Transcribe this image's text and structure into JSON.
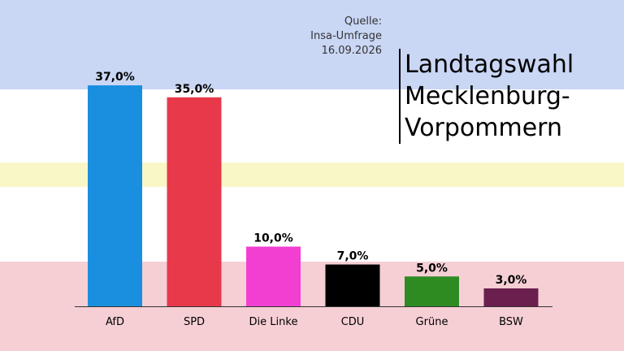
{
  "source": {
    "line1": "Quelle:",
    "line2": "Insa-Umfrage",
    "line3": "16.09.2026"
  },
  "chart_data": {
    "type": "bar",
    "title": "Landtagswahl\nMecklenburg-\nVorpommern",
    "categories": [
      "AfD",
      "SPD",
      "Die Linke",
      "CDU",
      "Grüne",
      "BSW"
    ],
    "values": [
      37.0,
      35.0,
      10.0,
      7.0,
      5.0,
      3.0
    ],
    "value_labels": [
      "37,0%",
      "35,0%",
      "10,0%",
      "7,0%",
      "5,0%",
      "3,0%"
    ],
    "colors": [
      "#1a8fe0",
      "#e8394a",
      "#f23fd2",
      "#000000",
      "#2e8b22",
      "#6a1f4e"
    ],
    "ylim": [
      0,
      40
    ],
    "grid": false,
    "legend": "none"
  }
}
